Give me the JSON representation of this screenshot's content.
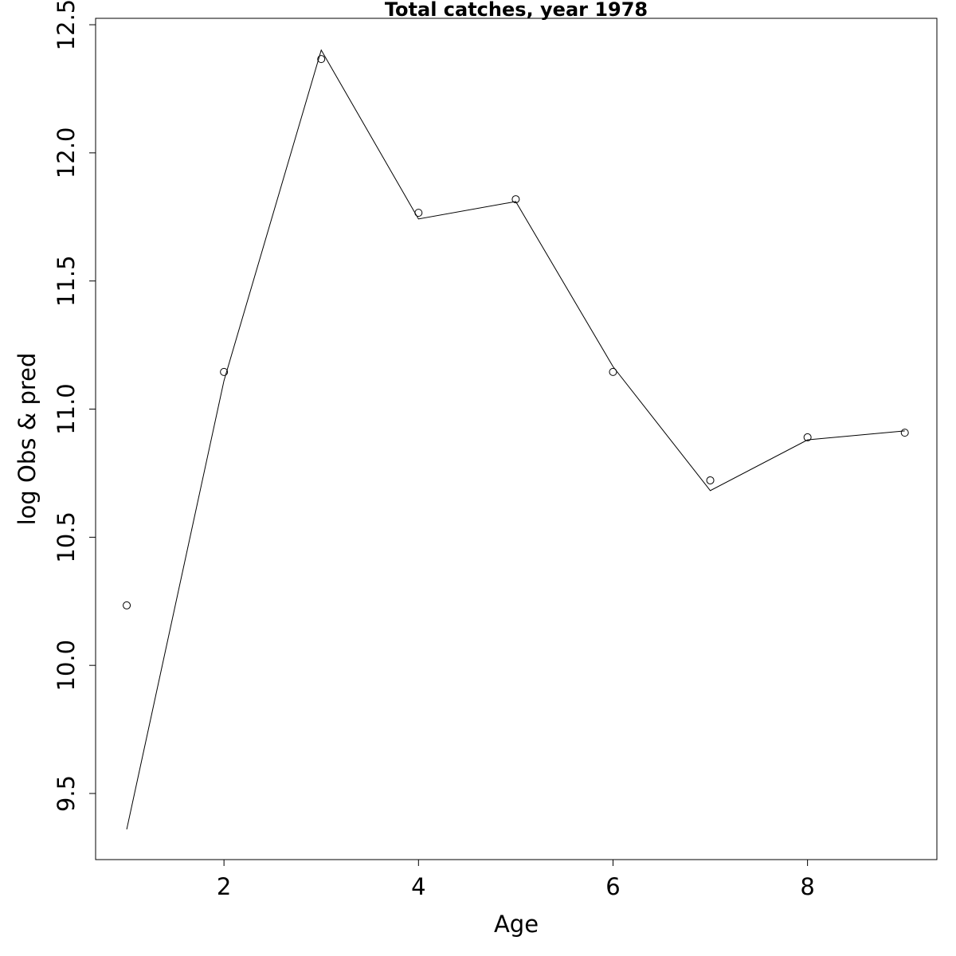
{
  "chart_data": {
    "type": "line",
    "title": "Total catches, year 1978",
    "xlabel": "Age",
    "ylabel": "log Obs & pred",
    "x": [
      1,
      2,
      3,
      4,
      5,
      6,
      7,
      8,
      9
    ],
    "series": [
      {
        "type": "scatter",
        "color": "#000000",
        "values": [
          10.234,
          11.145,
          12.366,
          11.766,
          11.819,
          11.145,
          10.722,
          10.89,
          10.908
        ]
      },
      {
        "type": "line",
        "color": "#000000",
        "values": [
          9.36,
          11.111,
          12.401,
          11.742,
          11.81,
          11.166,
          10.682,
          10.88,
          10.915
        ]
      }
    ],
    "xlim": [
      0.68,
      9.33
    ],
    "ylim": [
      9.242,
      12.525
    ],
    "xticks": [
      2,
      4,
      6,
      8
    ],
    "yticks": [
      9.5,
      {
        "value": 10,
        "label": "10.0"
      },
      10.5,
      {
        "value": 11,
        "label": "11.0"
      },
      11.5,
      {
        "value": 12,
        "label": "12.0"
      },
      12.5
    ]
  }
}
